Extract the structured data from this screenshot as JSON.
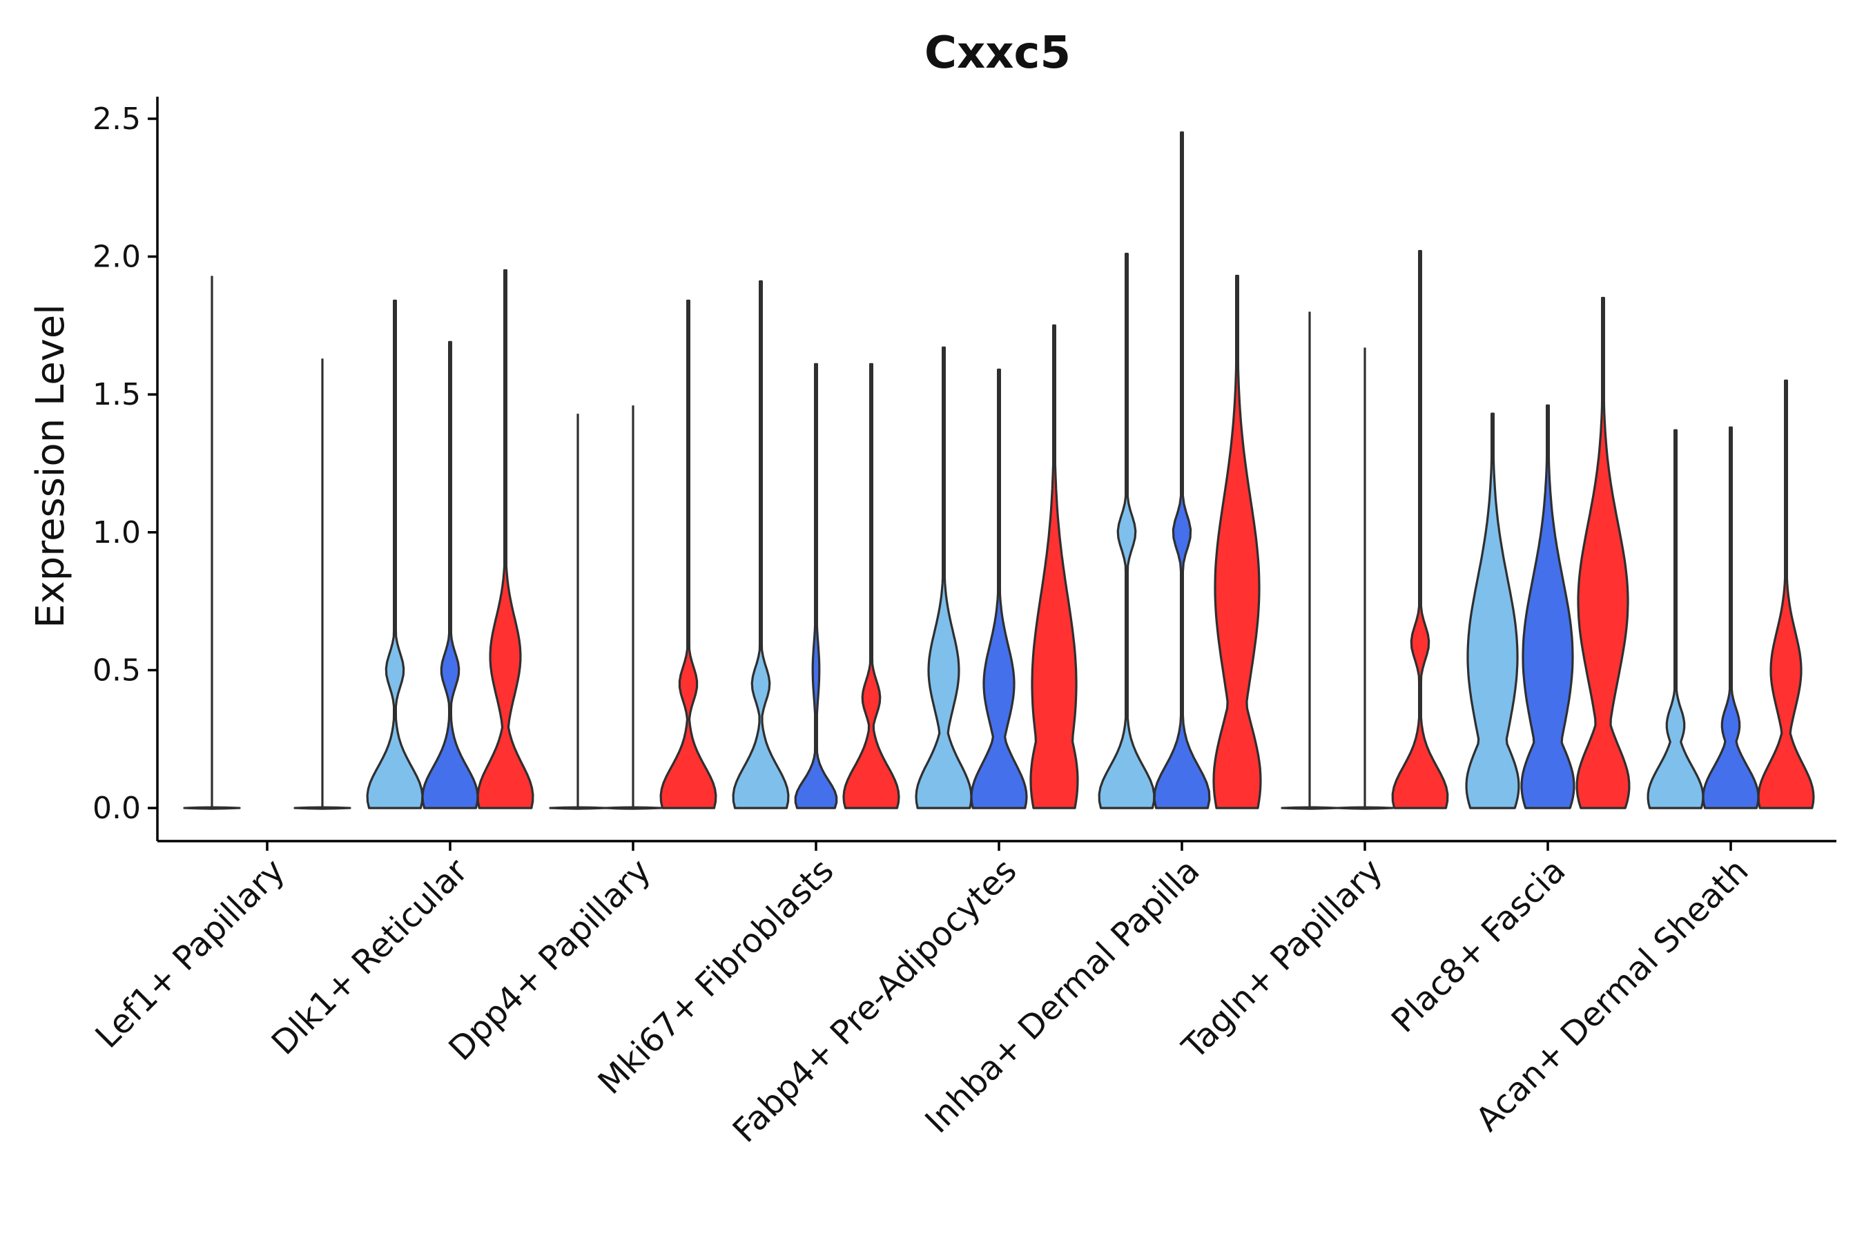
{
  "chart_data": {
    "type": "violin",
    "title": "Cxxc5",
    "xlabel": "",
    "ylabel": "Expression Level",
    "ylim": [
      -0.12,
      2.58
    ],
    "yticks": [
      0.0,
      0.5,
      1.0,
      1.5,
      2.0,
      2.5
    ],
    "ytick_labels": [
      "0.0",
      "0.5",
      "1.0",
      "1.5",
      "2.0",
      "2.5"
    ],
    "categories": [
      "Lef1+ Papillary",
      "Dlk1+ Reticular",
      "Dpp4+ Papillary",
      "Mki67+ Fibroblasts",
      "Fabp4+ Pre-Adipocytes",
      "Inhba+ Dermal Papilla",
      "Tagln+ Papillary",
      "Plac8+ Fascia",
      "Acan+ Dermal Sheath"
    ],
    "series_colors": [
      "#7fbfec",
      "#4470ec",
      "#ff3131"
    ],
    "violins": [
      [
        {
          "max": 1.93,
          "profile": "zero"
        },
        {
          "max": 0.0,
          "profile": "none"
        },
        {
          "max": 1.63,
          "profile": "zero"
        }
      ],
      [
        {
          "max": 1.84,
          "profile": "lowspike",
          "peak_at": 0.5
        },
        {
          "max": 1.69,
          "profile": "lowspike",
          "peak_at": 0.5
        },
        {
          "max": 1.95,
          "profile": "bimodal",
          "peak_at": 0.55
        }
      ],
      [
        {
          "max": 1.43,
          "profile": "zero"
        },
        {
          "max": 1.46,
          "profile": "zero"
        },
        {
          "max": 1.84,
          "profile": "lowspike",
          "peak_at": 0.45
        }
      ],
      [
        {
          "max": 1.91,
          "profile": "lowspike",
          "peak_at": 0.45
        },
        {
          "max": 1.61,
          "profile": "flatlow",
          "peak_at": 0.5
        },
        {
          "max": 1.61,
          "profile": "lowspike",
          "peak_at": 0.4
        }
      ],
      [
        {
          "max": 1.67,
          "profile": "bimodal",
          "peak_at": 0.5
        },
        {
          "max": 1.59,
          "profile": "bimodal",
          "peak_at": 0.45
        },
        {
          "max": 1.75,
          "profile": "broad",
          "peak_at": 0.45
        }
      ],
      [
        {
          "max": 2.01,
          "profile": "lowspike",
          "peak_at": 1.0
        },
        {
          "max": 2.45,
          "profile": "lowspike",
          "peak_at": 1.0
        },
        {
          "max": 1.93,
          "profile": "broad",
          "peak_at": 0.8
        }
      ],
      [
        {
          "max": 1.8,
          "profile": "zero"
        },
        {
          "max": 1.67,
          "profile": "zero"
        },
        {
          "max": 2.02,
          "profile": "lowspike",
          "peak_at": 0.6
        }
      ],
      [
        {
          "max": 1.43,
          "profile": "wide",
          "peak_at": 0.55
        },
        {
          "max": 1.46,
          "profile": "wide",
          "peak_at": 0.55
        },
        {
          "max": 1.85,
          "profile": "wide",
          "peak_at": 0.75
        }
      ],
      [
        {
          "max": 1.37,
          "profile": "lowspike",
          "peak_at": 0.3
        },
        {
          "max": 1.38,
          "profile": "lowspike",
          "peak_at": 0.3
        },
        {
          "max": 1.55,
          "profile": "bimodal",
          "peak_at": 0.5
        }
      ]
    ]
  }
}
